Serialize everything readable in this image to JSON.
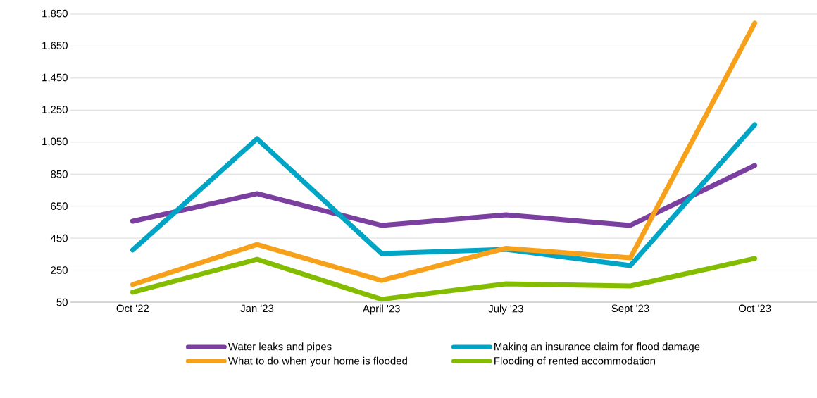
{
  "chart_data": {
    "type": "line",
    "categories": [
      "Oct '22",
      "Jan '23",
      "April '23",
      "July '23",
      "Sept '23",
      "Oct '23"
    ],
    "series": [
      {
        "name": "Water leaks and pipes",
        "color": "#7b3fa0",
        "values": [
          556,
          728,
          530,
          596,
          530,
          904
        ]
      },
      {
        "name": "Making an insurance claim for flood damage",
        "color": "#00a5c6",
        "values": [
          376,
          1071,
          354,
          380,
          279,
          1159
        ]
      },
      {
        "name": "What to do when your home is flooded",
        "color": "#f7a11a",
        "values": [
          160,
          410,
          186,
          387,
          327,
          1793
        ]
      },
      {
        "name": "Flooding of rented accommodation",
        "color": "#84bd00",
        "values": [
          112,
          318,
          68,
          164,
          151,
          323
        ]
      }
    ],
    "ylim": [
      50,
      1850
    ],
    "yticks": [
      {
        "value": 50,
        "label": "50"
      },
      {
        "value": 250,
        "label": "250"
      },
      {
        "value": 450,
        "label": "450"
      },
      {
        "value": 650,
        "label": "650"
      },
      {
        "value": 850,
        "label": "850"
      },
      {
        "value": 1050,
        "label": "1,050"
      },
      {
        "value": 1250,
        "label": "1,250"
      },
      {
        "value": 1450,
        "label": "1,450"
      },
      {
        "value": 1650,
        "label": "1,650"
      },
      {
        "value": 1850,
        "label": "1,850"
      }
    ],
    "grid": "y",
    "legend": "bottom",
    "marker": "none",
    "line_style": "solid"
  }
}
